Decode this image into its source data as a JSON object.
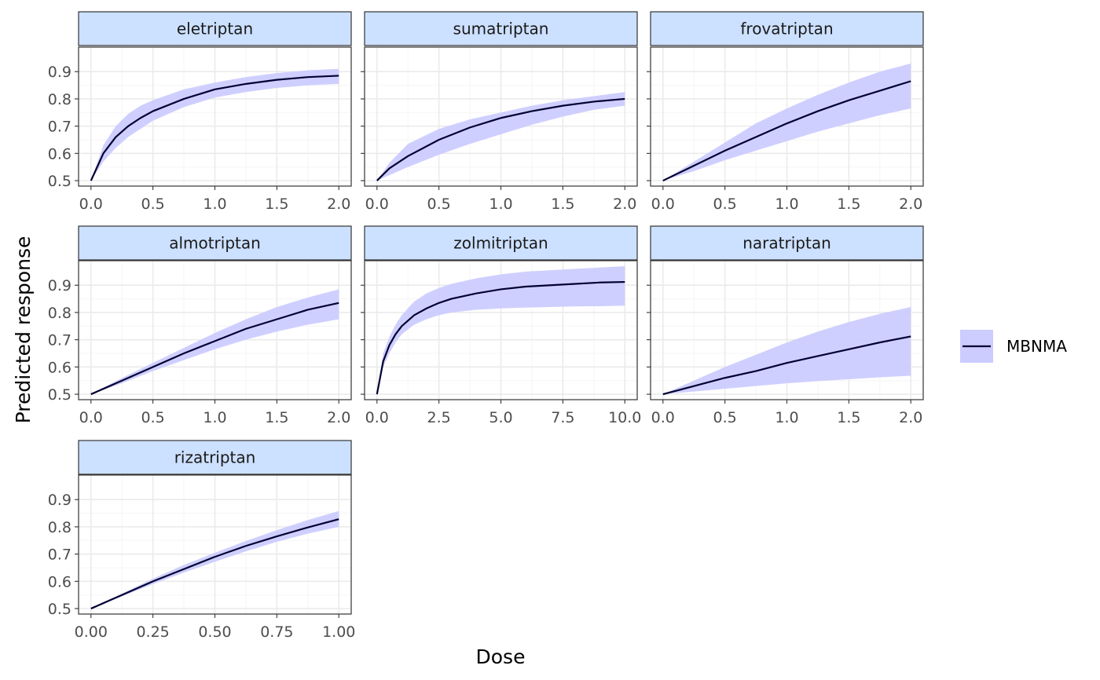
{
  "chart_data": {
    "type": "line",
    "xlabel": "Dose",
    "ylabel": "Predicted response",
    "legend": {
      "placement": "right",
      "entries": [
        "MBNMA"
      ]
    },
    "grid": true,
    "colors": {
      "line": "#000033",
      "ribbon": "#ccccff",
      "strip_fill": "#cce0ff",
      "strip_border": "#333333",
      "grid_major": "#ebebeb",
      "grid_minor": "#f5f5f5"
    },
    "ylim": [
      0.48,
      0.99
    ],
    "y_ticks": [
      0.5,
      0.6,
      0.7,
      0.8,
      0.9
    ],
    "y_tick_labels": [
      "0.5",
      "0.6",
      "0.7",
      "0.8",
      "0.9"
    ],
    "panels": [
      {
        "title": "eletriptan",
        "xlim": [
          -0.1,
          2.1
        ],
        "x_ticks": [
          0,
          0.5,
          1,
          1.5,
          2
        ],
        "x_tick_labels": [
          "0.0",
          "0.5",
          "1.0",
          "1.5",
          "2.0"
        ],
        "x": [
          0,
          0.1,
          0.2,
          0.3,
          0.4,
          0.5,
          0.75,
          1.0,
          1.25,
          1.5,
          1.75,
          2.0
        ],
        "y": [
          0.5,
          0.6,
          0.66,
          0.7,
          0.73,
          0.755,
          0.8,
          0.835,
          0.855,
          0.87,
          0.88,
          0.885
        ],
        "lower": [
          0.5,
          0.57,
          0.62,
          0.66,
          0.69,
          0.72,
          0.77,
          0.805,
          0.825,
          0.84,
          0.85,
          0.855
        ],
        "upper": [
          0.5,
          0.63,
          0.7,
          0.745,
          0.775,
          0.795,
          0.835,
          0.86,
          0.88,
          0.895,
          0.905,
          0.91
        ]
      },
      {
        "title": "sumatriptan",
        "xlim": [
          -0.1,
          2.1
        ],
        "x_ticks": [
          0,
          0.5,
          1,
          1.5,
          2
        ],
        "x_tick_labels": [
          "0.0",
          "0.5",
          "1.0",
          "1.5",
          "2.0"
        ],
        "x": [
          0,
          0.1,
          0.25,
          0.5,
          0.75,
          1.0,
          1.25,
          1.5,
          1.75,
          2.0
        ],
        "y": [
          0.5,
          0.545,
          0.59,
          0.65,
          0.695,
          0.73,
          0.755,
          0.775,
          0.79,
          0.8
        ],
        "lower": [
          0.5,
          0.52,
          0.55,
          0.595,
          0.635,
          0.67,
          0.705,
          0.735,
          0.76,
          0.775
        ],
        "upper": [
          0.5,
          0.565,
          0.635,
          0.69,
          0.725,
          0.75,
          0.775,
          0.795,
          0.81,
          0.825
        ]
      },
      {
        "title": "frovatriptan",
        "xlim": [
          -0.1,
          2.1
        ],
        "x_ticks": [
          0,
          0.5,
          1,
          1.5,
          2
        ],
        "x_tick_labels": [
          "0.0",
          "0.5",
          "1.0",
          "1.5",
          "2.0"
        ],
        "x": [
          0,
          0.25,
          0.5,
          0.75,
          1.0,
          1.25,
          1.5,
          1.75,
          2.0
        ],
        "y": [
          0.5,
          0.555,
          0.61,
          0.66,
          0.71,
          0.755,
          0.795,
          0.83,
          0.865
        ],
        "lower": [
          0.5,
          0.535,
          0.575,
          0.61,
          0.645,
          0.68,
          0.71,
          0.74,
          0.765
        ],
        "upper": [
          0.5,
          0.57,
          0.64,
          0.71,
          0.765,
          0.815,
          0.86,
          0.9,
          0.93
        ]
      },
      {
        "title": "almotriptan",
        "xlim": [
          -0.1,
          2.1
        ],
        "x_ticks": [
          0,
          0.5,
          1,
          1.5,
          2
        ],
        "x_tick_labels": [
          "0.0",
          "0.5",
          "1.0",
          "1.5",
          "2.0"
        ],
        "x": [
          0,
          0.25,
          0.5,
          0.75,
          1.0,
          1.25,
          1.5,
          1.75,
          2.0
        ],
        "y": [
          0.5,
          0.55,
          0.6,
          0.65,
          0.695,
          0.74,
          0.775,
          0.81,
          0.835
        ],
        "lower": [
          0.5,
          0.54,
          0.585,
          0.625,
          0.665,
          0.7,
          0.73,
          0.755,
          0.775
        ],
        "upper": [
          0.5,
          0.56,
          0.615,
          0.67,
          0.725,
          0.775,
          0.82,
          0.855,
          0.885
        ]
      },
      {
        "title": "zolmitriptan",
        "xlim": [
          -0.5,
          10.5
        ],
        "x_ticks": [
          0,
          2.5,
          5,
          7.5,
          10
        ],
        "x_tick_labels": [
          "0.0",
          "2.5",
          "5.0",
          "7.5",
          "10.0"
        ],
        "x": [
          0,
          0.25,
          0.5,
          0.75,
          1.0,
          1.5,
          2.0,
          2.5,
          3,
          4,
          5,
          6,
          7,
          8,
          9,
          10
        ],
        "y": [
          0.5,
          0.62,
          0.68,
          0.72,
          0.75,
          0.79,
          0.815,
          0.835,
          0.85,
          0.87,
          0.885,
          0.895,
          0.9,
          0.905,
          0.91,
          0.912
        ],
        "lower": [
          0.5,
          0.6,
          0.65,
          0.69,
          0.72,
          0.755,
          0.775,
          0.79,
          0.8,
          0.81,
          0.815,
          0.818,
          0.82,
          0.822,
          0.823,
          0.825
        ],
        "upper": [
          0.5,
          0.65,
          0.71,
          0.755,
          0.79,
          0.84,
          0.87,
          0.89,
          0.905,
          0.925,
          0.94,
          0.95,
          0.955,
          0.96,
          0.965,
          0.97
        ]
      },
      {
        "title": "naratriptan",
        "xlim": [
          -0.1,
          2.1
        ],
        "x_ticks": [
          0,
          0.5,
          1,
          1.5,
          2
        ],
        "x_tick_labels": [
          "0.0",
          "0.5",
          "1.0",
          "1.5",
          "2.0"
        ],
        "x": [
          0,
          0.25,
          0.5,
          0.75,
          1.0,
          1.25,
          1.5,
          1.75,
          2.0
        ],
        "y": [
          0.5,
          0.53,
          0.56,
          0.585,
          0.615,
          0.64,
          0.665,
          0.69,
          0.712
        ],
        "lower": [
          0.5,
          0.51,
          0.52,
          0.53,
          0.54,
          0.548,
          0.555,
          0.562,
          0.568
        ],
        "upper": [
          0.5,
          0.55,
          0.6,
          0.645,
          0.69,
          0.73,
          0.765,
          0.795,
          0.82
        ]
      },
      {
        "title": "rizatriptan",
        "xlim": [
          -0.05,
          1.05
        ],
        "x_ticks": [
          0,
          0.25,
          0.5,
          0.75,
          1
        ],
        "x_tick_labels": [
          "0.00",
          "0.25",
          "0.50",
          "0.75",
          "1.00"
        ],
        "x": [
          0,
          0.125,
          0.25,
          0.375,
          0.5,
          0.625,
          0.75,
          0.875,
          1.0
        ],
        "y": [
          0.5,
          0.55,
          0.6,
          0.645,
          0.69,
          0.73,
          0.765,
          0.798,
          0.828
        ],
        "lower": [
          0.5,
          0.545,
          0.59,
          0.632,
          0.672,
          0.71,
          0.745,
          0.775,
          0.8
        ],
        "upper": [
          0.5,
          0.555,
          0.61,
          0.66,
          0.705,
          0.748,
          0.788,
          0.825,
          0.858
        ]
      }
    ]
  }
}
